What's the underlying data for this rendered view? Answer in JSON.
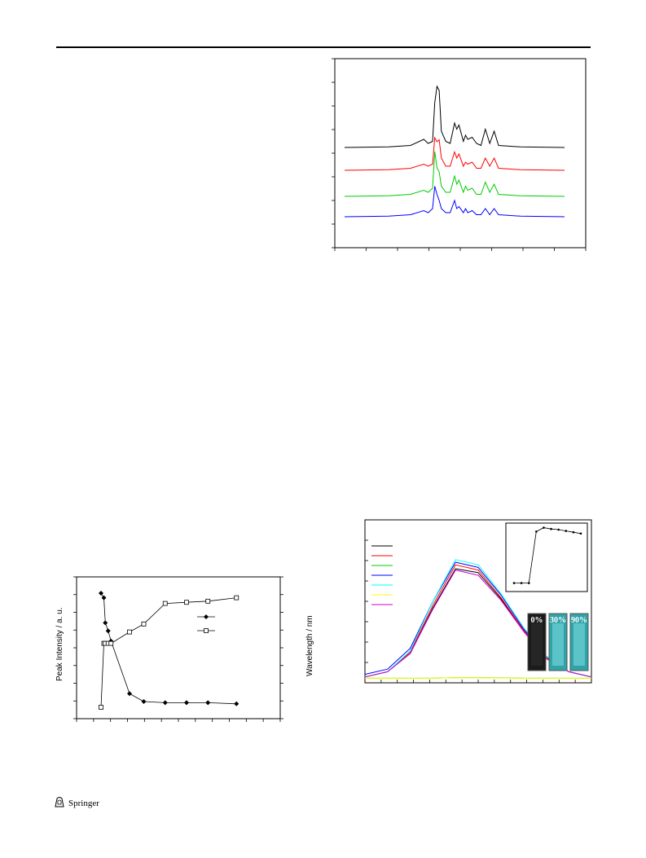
{
  "page": {
    "footer_publisher": "Springer"
  },
  "colors": {
    "black": "#000000",
    "red": "#ff0000",
    "green": "#00cc00",
    "blue": "#0000ff",
    "cyan": "#00ffff",
    "yellow": "#ffff00",
    "magenta": "#cc00cc",
    "vial_teal": "#2fa3a8",
    "vial_dark": "#1b1b1b"
  },
  "figures": {
    "xrd": {
      "chart_data": {
        "type": "line",
        "series": [
          {
            "color": "#000000",
            "x": [
              0,
              20,
              30,
              36,
              38,
              40,
              41,
              42,
              43,
              44,
              46,
              48,
              50,
              51,
              52,
              54,
              55,
              56,
              58,
              60,
              62,
              64,
              66,
              68,
              70,
              80,
              100
            ],
            "y": [
              0,
              0.3,
              1,
              4,
              2,
              3,
              22,
              30,
              28,
              8,
              3,
              2,
              12,
              9,
              11,
              3,
              6,
              4,
              5,
              2,
              1,
              9,
              2,
              8,
              1,
              0.3,
              0
            ]
          },
          {
            "color": "#ff0000",
            "x": [
              0,
              20,
              30,
              36,
              38,
              40,
              41,
              42,
              43,
              44,
              46,
              48,
              50,
              51,
              52,
              54,
              55,
              56,
              58,
              60,
              62,
              64,
              66,
              68,
              70,
              80,
              100
            ],
            "y": [
              0,
              0.3,
              1,
              3,
              2,
              3,
              16,
              14,
              15,
              6,
              2,
              2,
              9,
              6,
              8,
              2,
              4,
              3,
              4,
              1,
              1,
              6,
              2,
              6,
              1,
              0.3,
              0
            ]
          },
          {
            "color": "#00cc00",
            "x": [
              0,
              20,
              30,
              36,
              38,
              40,
              41,
              42,
              43,
              44,
              46,
              48,
              50,
              51,
              52,
              54,
              55,
              56,
              58,
              60,
              62,
              64,
              66,
              68,
              70,
              80,
              100
            ],
            "y": [
              0,
              0.3,
              1,
              3,
              2,
              4,
              22,
              14,
              12,
              5,
              2,
              2,
              10,
              6,
              8,
              2,
              5,
              3,
              4,
              1,
              1,
              7,
              2,
              6,
              1,
              0.3,
              0
            ]
          },
          {
            "color": "#0000ff",
            "x": [
              0,
              20,
              30,
              36,
              38,
              40,
              41,
              42,
              43,
              44,
              46,
              48,
              50,
              51,
              52,
              54,
              55,
              56,
              58,
              60,
              62,
              64,
              66,
              68,
              70,
              80,
              100
            ],
            "y": [
              0,
              0.3,
              1,
              3,
              2,
              4,
              15,
              11,
              8,
              4,
              2,
              2,
              8,
              4,
              5,
              2,
              4,
              2,
              3,
              1,
              1,
              4,
              1,
              4,
              1,
              0.3,
              0
            ]
          }
        ]
      }
    },
    "aie": {
      "ylabel_left": "Peak Intensity / a. u.",
      "ylabel_right": "Wavelength / nm",
      "chart_data": {
        "type": "line",
        "series": [
          {
            "marker": "filled-diamond",
            "x": [
              0,
              2,
              3,
              5,
              7,
              20,
              30,
              45,
              60,
              75,
              95
            ],
            "y": [
              100,
              96,
              74,
              67,
              58,
              12,
              5,
              4,
              4,
              4,
              3
            ]
          },
          {
            "marker": "open-square",
            "x": [
              0,
              2,
              3,
              5,
              7,
              20,
              30,
              45,
              60,
              75,
              95
            ],
            "y": [
              0,
              56,
              56,
              56,
              56,
              66,
              73,
              91,
              92,
              93,
              96
            ]
          }
        ]
      }
    },
    "pl": {
      "vials": [
        {
          "label": "0%",
          "tone": "dark"
        },
        {
          "label": "30%",
          "tone": "teal"
        },
        {
          "label": "90%",
          "tone": "teal"
        }
      ],
      "chart_data": {
        "type": "line",
        "series": [
          {
            "color": "#000000",
            "x": [
              0,
              10,
              20,
              30,
              40,
              50,
              60,
              70,
              80,
              90,
              100
            ],
            "y": [
              2,
              6,
              20,
              55,
              85,
              82,
              62,
              38,
              17,
              6,
              2
            ]
          },
          {
            "color": "#ff0000",
            "x": [
              0,
              10,
              20,
              30,
              40,
              50,
              60,
              70,
              80,
              90,
              100
            ],
            "y": [
              2,
              6,
              21,
              57,
              88,
              84,
              63,
              38,
              17,
              6,
              2
            ]
          },
          {
            "color": "#00cc00",
            "x": [
              0,
              10,
              20,
              30,
              40,
              50,
              60,
              70,
              80,
              90,
              100
            ],
            "y": [
              1,
              1,
              1,
              1,
              1.5,
              1.5,
              1.3,
              1,
              1,
              1,
              1
            ]
          },
          {
            "color": "#0000ff",
            "x": [
              0,
              10,
              20,
              30,
              40,
              50,
              60,
              70,
              80,
              90,
              100
            ],
            "y": [
              4,
              8,
              24,
              60,
              90,
              86,
              65,
              39,
              18,
              6,
              2
            ]
          },
          {
            "color": "#00ffff",
            "x": [
              0,
              10,
              20,
              30,
              40,
              50,
              60,
              70,
              80,
              90,
              100
            ],
            "y": [
              2,
              6,
              22,
              60,
              92,
              88,
              66,
              40,
              18,
              6,
              2
            ]
          },
          {
            "color": "#ffff00",
            "x": [
              0,
              10,
              20,
              30,
              40,
              50,
              60,
              70,
              80,
              90,
              100
            ],
            "y": [
              1,
              1,
              1,
              1,
              1.4,
              1.4,
              1.2,
              1,
              1,
              1,
              1
            ]
          },
          {
            "color": "#cc00cc",
            "x": [
              0,
              10,
              20,
              30,
              40,
              50,
              60,
              70,
              80,
              90,
              100
            ],
            "y": [
              2,
              6,
              20,
              54,
              84,
              80,
              61,
              37,
              16,
              6,
              2
            ]
          }
        ],
        "inset": {
          "x": [
            0,
            10,
            20,
            30,
            40,
            50,
            60,
            70,
            80,
            90
          ],
          "y": [
            3,
            3,
            3,
            82,
            88,
            86,
            85,
            83,
            81,
            79
          ]
        }
      }
    }
  }
}
